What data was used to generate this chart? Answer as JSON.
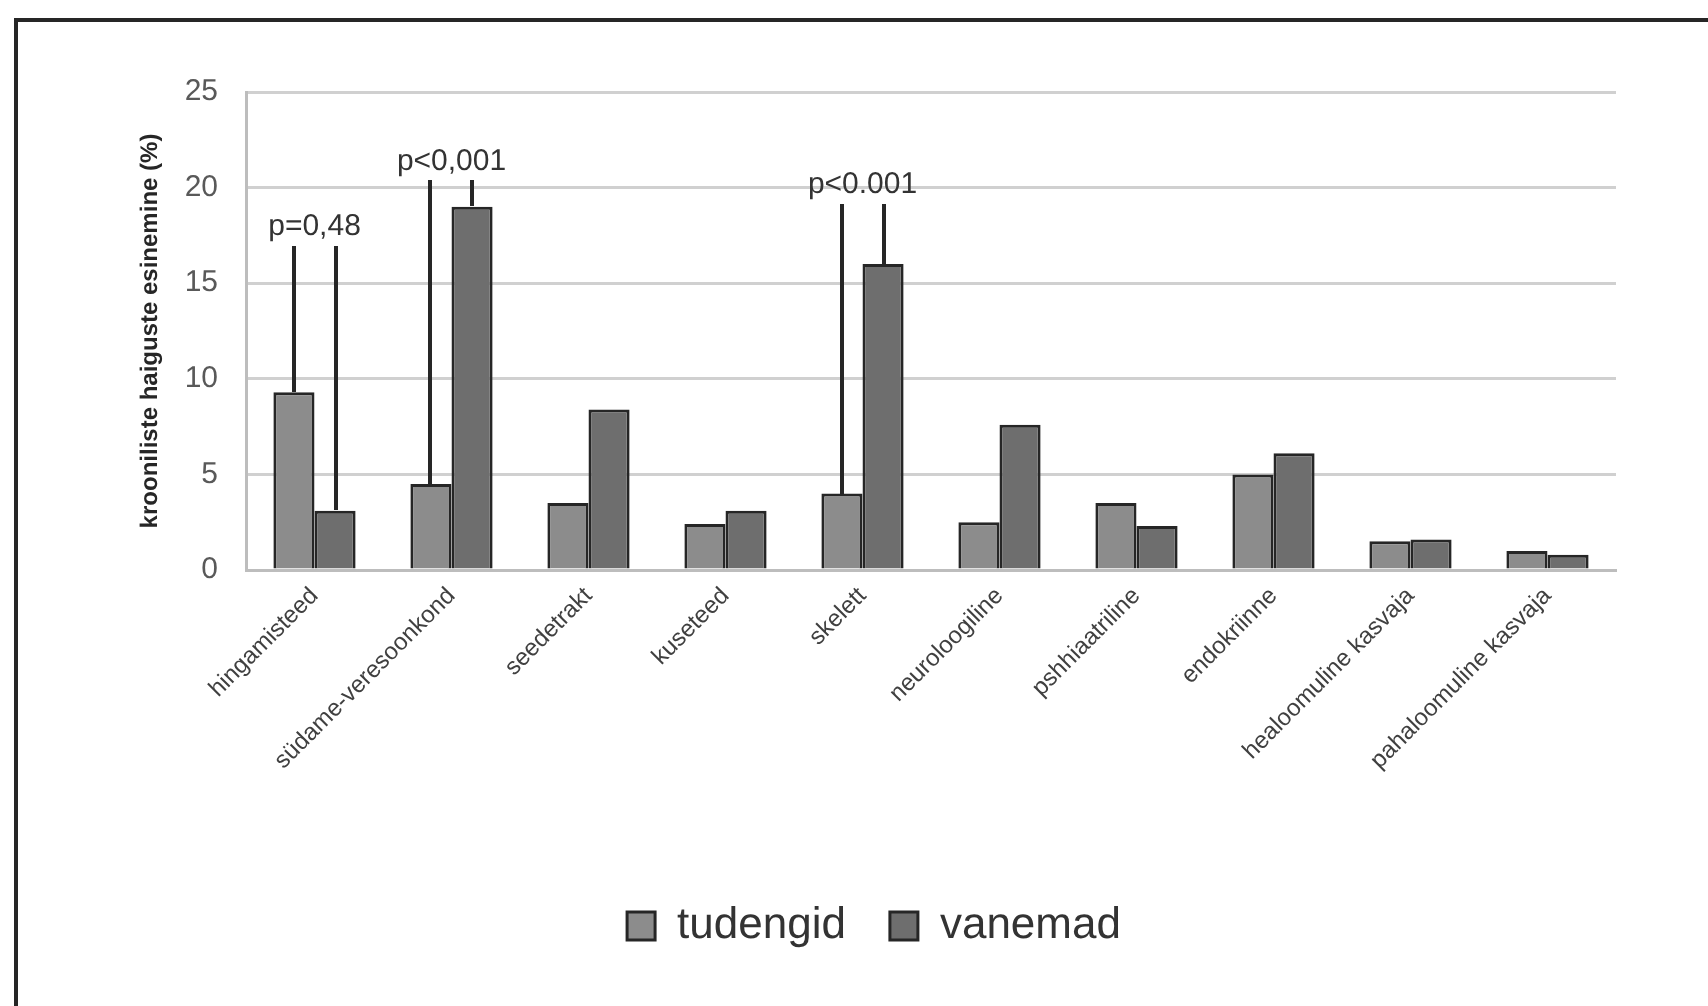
{
  "chart_data": {
    "type": "bar",
    "ylabel": "krooniliste haiguste esinemine (%)",
    "categories": [
      "hingamisteed",
      "südame-veresoonkond",
      "seedetrakt",
      "kuseteed",
      "skelett",
      "neuroloogiline",
      "pshhiaatriline",
      "endokriinne",
      "healoomuline kasvaja",
      "pahaloomuline kasvaja"
    ],
    "series": [
      {
        "name": "tudengid",
        "color": "#8c8c8c",
        "values": [
          9.3,
          4.5,
          3.5,
          2.4,
          4.0,
          2.5,
          3.5,
          5.0,
          1.5,
          1.0
        ]
      },
      {
        "name": "vanemad",
        "color": "#6e6e6e",
        "values": [
          3.1,
          19,
          8.4,
          3.1,
          16,
          7.6,
          2.3,
          6.1,
          1.6,
          0.8
        ]
      }
    ],
    "ylim": [
      0,
      25
    ],
    "yticks": [
      0,
      5,
      10,
      15,
      20,
      25
    ],
    "grid": "y",
    "legend": "bottom",
    "annotations": [
      "p=0,48",
      "p<0,001",
      "p<0.001"
    ]
  }
}
